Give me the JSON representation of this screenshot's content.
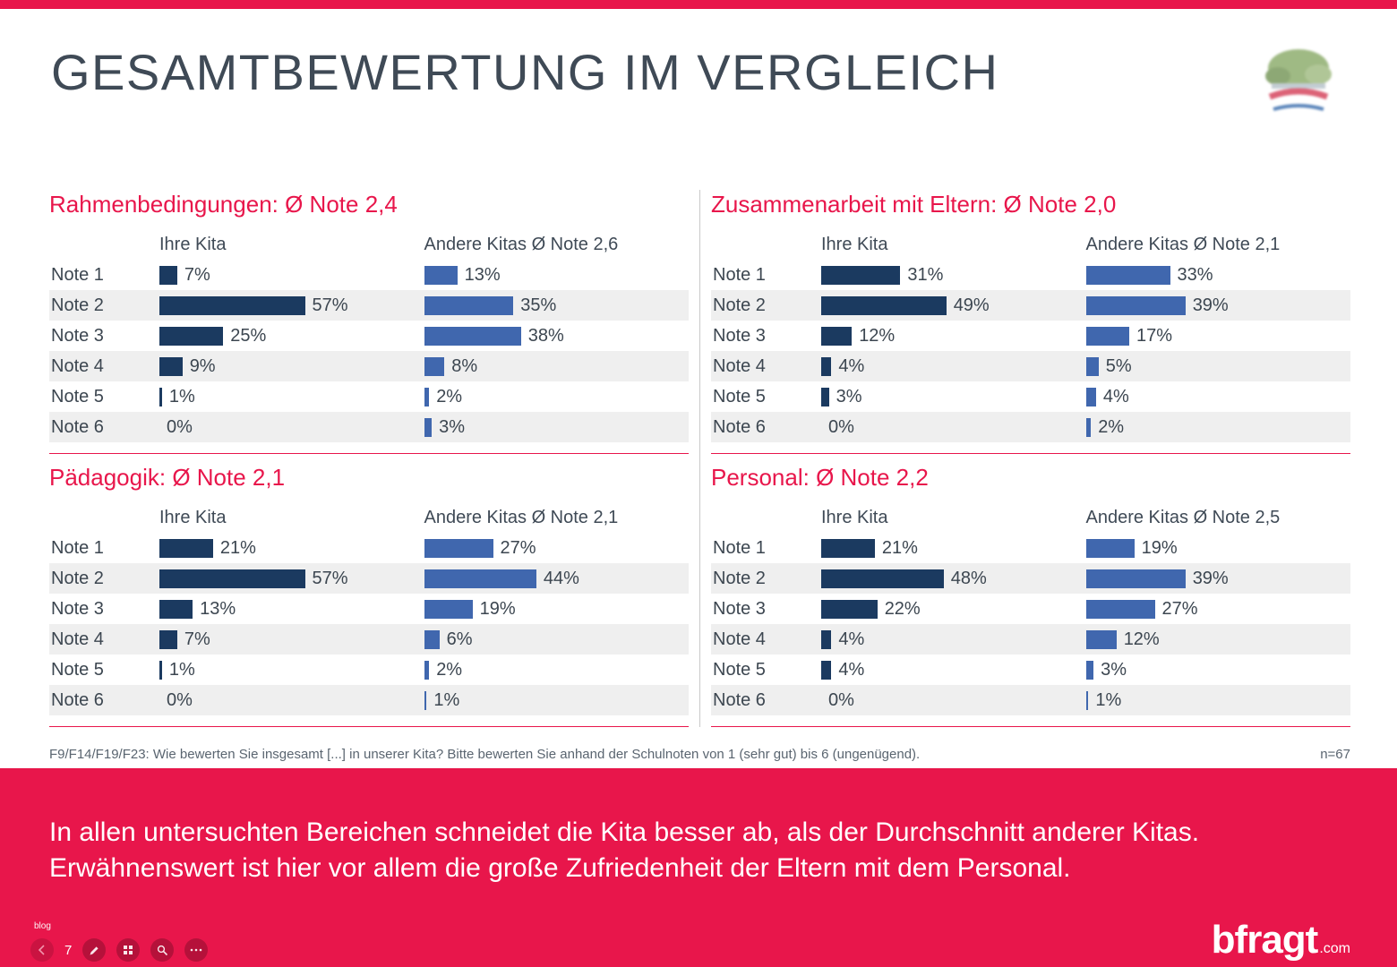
{
  "page": {
    "title": "GESAMTBEWERTUNG IM VERGLEICH",
    "footnote": "F9/F14/F19/F23: Wie bewerten Sie insgesamt [...] in unserer Kita? Bitte bewerten Sie anhand der Schulnoten von 1 (sehr gut) bis 6 (ungenügend).",
    "sample_label": "n=67"
  },
  "banner": {
    "line1": "In allen untersuchten Bereichen schneidet die Kita besser ab, als der Durchschnitt anderer Kitas.",
    "line2": "Erwähnenswert ist hier vor allem die große Zufriedenheit der Eltern mit dem Personal."
  },
  "controls": {
    "watermark": "blog",
    "slide_number": "7"
  },
  "brand": {
    "name": "bfragt",
    "suffix": ".com"
  },
  "colors": {
    "accent": "#e8164b",
    "bar_primary": "#1b3a60",
    "bar_secondary": "#4067ae",
    "row_alt": "#efefef",
    "heading": "#3f4a56",
    "text": "#3c4650",
    "muted": "#5a6570"
  },
  "chart_data": [
    {
      "type": "bar",
      "orientation": "horizontal",
      "title": "Rahmenbedingungen: Ø Note 2,4",
      "categories": [
        "Note 1",
        "Note 2",
        "Note 3",
        "Note 4",
        "Note 5",
        "Note 6"
      ],
      "series": [
        {
          "name": "Ihre Kita",
          "values": [
            7,
            57,
            25,
            9,
            1,
            0
          ]
        },
        {
          "name": "Andere Kitas Ø Note 2,6",
          "values": [
            13,
            35,
            38,
            8,
            2,
            3
          ]
        }
      ],
      "unit": "%",
      "xlim": [
        0,
        60
      ],
      "grid": false,
      "legend_position": "column-headers"
    },
    {
      "type": "bar",
      "orientation": "horizontal",
      "title": "Zusammenarbeit mit Eltern: Ø Note 2,0",
      "categories": [
        "Note 1",
        "Note 2",
        "Note 3",
        "Note 4",
        "Note 5",
        "Note 6"
      ],
      "series": [
        {
          "name": "Ihre Kita",
          "values": [
            31,
            49,
            12,
            4,
            3,
            0
          ]
        },
        {
          "name": "Andere Kitas Ø Note 2,1",
          "values": [
            33,
            39,
            17,
            5,
            4,
            2
          ]
        }
      ],
      "unit": "%",
      "xlim": [
        0,
        60
      ],
      "grid": false,
      "legend_position": "column-headers"
    },
    {
      "type": "bar",
      "orientation": "horizontal",
      "title": "Pädagogik: Ø Note 2,1",
      "categories": [
        "Note 1",
        "Note 2",
        "Note 3",
        "Note 4",
        "Note 5",
        "Note 6"
      ],
      "series": [
        {
          "name": "Ihre Kita",
          "values": [
            21,
            57,
            13,
            7,
            1,
            0
          ]
        },
        {
          "name": "Andere Kitas Ø Note 2,1",
          "values": [
            27,
            44,
            19,
            6,
            2,
            1
          ]
        }
      ],
      "unit": "%",
      "xlim": [
        0,
        60
      ],
      "grid": false,
      "legend_position": "column-headers"
    },
    {
      "type": "bar",
      "orientation": "horizontal",
      "title": "Personal: Ø Note 2,2",
      "categories": [
        "Note 1",
        "Note 2",
        "Note 3",
        "Note 4",
        "Note 5",
        "Note 6"
      ],
      "series": [
        {
          "name": "Ihre Kita",
          "values": [
            21,
            48,
            22,
            4,
            4,
            0
          ]
        },
        {
          "name": "Andere Kitas Ø Note 2,5",
          "values": [
            19,
            39,
            27,
            12,
            3,
            1
          ]
        }
      ],
      "unit": "%",
      "xlim": [
        0,
        60
      ],
      "grid": false,
      "legend_position": "column-headers"
    }
  ]
}
